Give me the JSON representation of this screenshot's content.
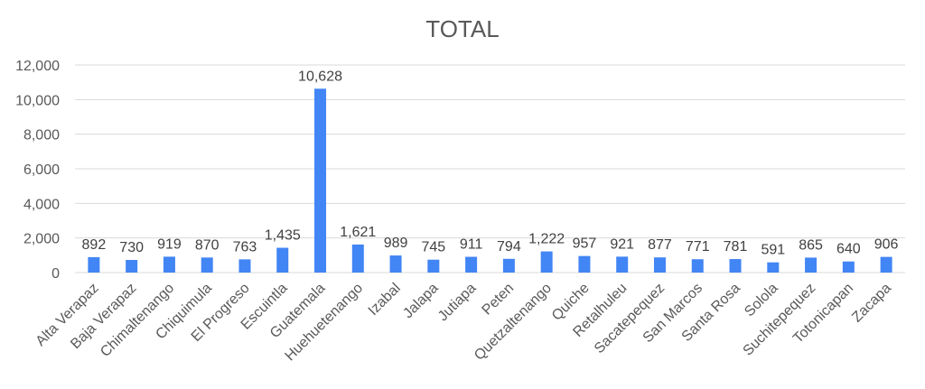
{
  "colors": {
    "bar": "#4285f4",
    "grid": "#d9d9d9",
    "text": "#595959"
  },
  "chart_data": {
    "type": "bar",
    "title": "TOTAL",
    "xlabel": "",
    "ylabel": "",
    "ylim": [
      0,
      12000
    ],
    "yticks": [
      0,
      2000,
      4000,
      6000,
      8000,
      10000,
      12000
    ],
    "ytick_labels": [
      "0",
      "2,000",
      "4,000",
      "6,000",
      "8,000",
      "10,000",
      "12,000"
    ],
    "grid": true,
    "legend": "none",
    "categories": [
      "Alta Verapaz",
      "Baja Verapaz",
      "Chimaltenango",
      "Chiquimula",
      "El Progreso",
      "Escuintla",
      "Guatemala",
      "Huehuetenango",
      "Izabal",
      "Jalapa",
      "Jutiapa",
      "Peten",
      "Quetzaltenango",
      "Quiche",
      "Retalhuleu",
      "Sacatepequez",
      "San Marcos",
      "Santa Rosa",
      "Solola",
      "Suchitepequez",
      "Totonicapan",
      "Zacapa"
    ],
    "values": [
      892,
      730,
      919,
      870,
      763,
      1435,
      10628,
      1621,
      989,
      745,
      911,
      794,
      1222,
      957,
      921,
      877,
      771,
      781,
      591,
      865,
      640,
      906
    ],
    "data_labels": [
      "892",
      "730",
      "919",
      "870",
      "763",
      "1,435",
      "10,628",
      "1,621",
      "989",
      "745",
      "911",
      "794",
      "1,222",
      "957",
      "921",
      "877",
      "771",
      "781",
      "591",
      "865",
      "640",
      "906"
    ]
  }
}
